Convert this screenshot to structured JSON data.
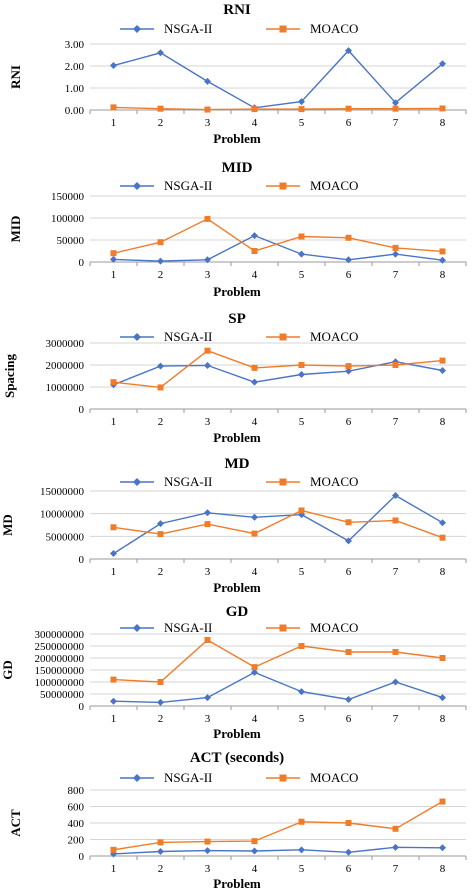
{
  "colors": {
    "nsga": "#4a74c6",
    "moaco": "#f07c2a",
    "grid": "#d4d4d4"
  },
  "chart_data": [
    {
      "type": "line",
      "title": "RNI",
      "xlabel": "Problem",
      "ylabel": "RNI",
      "categories": [
        "1",
        "2",
        "3",
        "4",
        "5",
        "6",
        "7",
        "8"
      ],
      "series": [
        {
          "name": "NSGA-II",
          "values": [
            2.02,
            2.6,
            1.3,
            0.1,
            0.38,
            2.7,
            0.33,
            2.1
          ]
        },
        {
          "name": "MOACO",
          "values": [
            0.12,
            0.06,
            0.02,
            0.04,
            0.04,
            0.06,
            0.06,
            0.07
          ]
        }
      ],
      "ylim": [
        0,
        3
      ],
      "yticks": [
        "0.00",
        "1.00",
        "2.00",
        "3.00"
      ],
      "legend": "top",
      "grid": true
    },
    {
      "type": "line",
      "title": "MID",
      "xlabel": "Problem",
      "ylabel": "MID",
      "categories": [
        "1",
        "2",
        "3",
        "4",
        "5",
        "6",
        "7",
        "8"
      ],
      "series": [
        {
          "name": "NSGA-II",
          "values": [
            6000,
            2000,
            5000,
            60000,
            18000,
            5000,
            18000,
            4000
          ]
        },
        {
          "name": "MOACO",
          "values": [
            20000,
            45000,
            98000,
            25000,
            58000,
            55000,
            32000,
            24000
          ]
        }
      ],
      "ylim": [
        0,
        150000
      ],
      "yticks": [
        "0",
        "50000",
        "100000",
        "150000"
      ],
      "legend": "top",
      "grid": true
    },
    {
      "type": "line",
      "title": "SP",
      "xlabel": "Problem",
      "ylabel": "Spacing",
      "categories": [
        "1",
        "2",
        "3",
        "4",
        "5",
        "6",
        "7",
        "8"
      ],
      "series": [
        {
          "name": "NSGA-II",
          "values": [
            1100000,
            1950000,
            1980000,
            1220000,
            1570000,
            1720000,
            2150000,
            1750000
          ]
        },
        {
          "name": "MOACO",
          "values": [
            1220000,
            980000,
            2650000,
            1870000,
            2000000,
            1950000,
            2000000,
            2200000
          ]
        }
      ],
      "ylim": [
        0,
        3000000
      ],
      "yticks": [
        "0",
        "1000000",
        "2000000",
        "3000000"
      ],
      "legend": "top",
      "grid": true
    },
    {
      "type": "line",
      "title": "MD",
      "xlabel": "Problem",
      "ylabel": "MD",
      "categories": [
        "1",
        "2",
        "3",
        "4",
        "5",
        "6",
        "7",
        "8"
      ],
      "series": [
        {
          "name": "NSGA-II",
          "values": [
            1200000,
            7800000,
            10200000,
            9200000,
            9800000,
            4000000,
            14000000,
            8000000
          ]
        },
        {
          "name": "MOACO",
          "values": [
            7000000,
            5500000,
            7700000,
            5600000,
            10700000,
            8100000,
            8500000,
            4700000
          ]
        }
      ],
      "ylim": [
        0,
        15000000
      ],
      "yticks": [
        "0",
        "5000000",
        "10000000",
        "15000000"
      ],
      "legend": "top",
      "grid": true
    },
    {
      "type": "line",
      "title": "GD",
      "xlabel": "Problem",
      "ylabel": "GD",
      "categories": [
        "1",
        "2",
        "3",
        "4",
        "5",
        "6",
        "7",
        "8"
      ],
      "series": [
        {
          "name": "NSGA-II",
          "values": [
            20000000,
            15000000,
            35000000,
            140000000,
            60000000,
            27000000,
            100000000,
            35000000
          ]
        },
        {
          "name": "MOACO",
          "values": [
            110000000,
            100000000,
            275000000,
            162000000,
            250000000,
            225000000,
            225000000,
            200000000
          ]
        }
      ],
      "ylim": [
        0,
        300000000
      ],
      "yticks": [
        "0",
        "50000000",
        "100000000",
        "150000000",
        "200000000",
        "250000000",
        "300000000"
      ],
      "legend": "top",
      "grid": true
    },
    {
      "type": "line",
      "title": "ACT (seconds)",
      "xlabel": "Problem",
      "ylabel": "ACT",
      "categories": [
        "1",
        "2",
        "3",
        "4",
        "5",
        "6",
        "7",
        "8"
      ],
      "series": [
        {
          "name": "NSGA-II",
          "values": [
            25,
            55,
            65,
            60,
            75,
            45,
            105,
            100
          ]
        },
        {
          "name": "MOACO",
          "values": [
            75,
            165,
            175,
            180,
            415,
            400,
            330,
            660
          ]
        }
      ],
      "ylim": [
        0,
        800
      ],
      "yticks": [
        "0",
        "200",
        "400",
        "600",
        "800"
      ],
      "legend": "top",
      "grid": true
    }
  ]
}
